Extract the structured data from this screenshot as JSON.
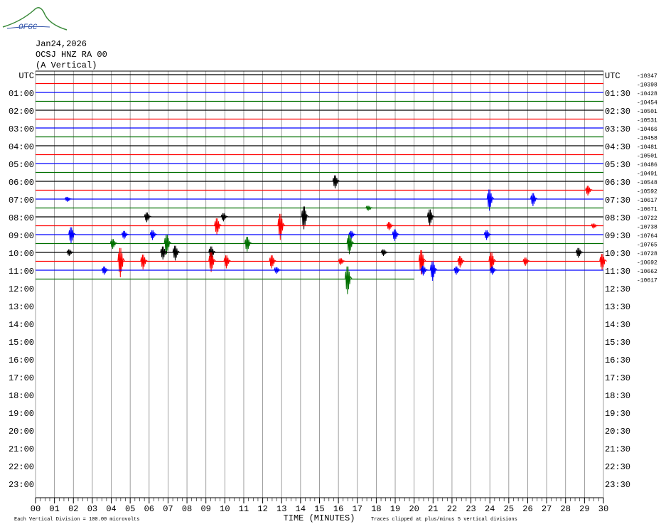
{
  "chart_data": {
    "type": "helicorder",
    "logo": "OFGC",
    "title": "Jan24,2026",
    "station": "OCSJ HNZ RA 00",
    "component": "(A Vertical)",
    "xlabel": "TIME (MINUTES)",
    "scale_note": "Each Vertical Division =  100.00 microvolts",
    "clip_note": "Traces clipped at plus/minus 5 vertical divisions",
    "left_labels": [
      "UTC",
      "01:00",
      "02:00",
      "03:00",
      "04:00",
      "05:00",
      "06:00",
      "07:00",
      "08:00",
      "09:00",
      "10:00",
      "11:00",
      "12:00",
      "13:00",
      "14:00",
      "15:00",
      "16:00",
      "17:00",
      "18:00",
      "19:00",
      "20:00",
      "21:00",
      "22:00",
      "23:00"
    ],
    "right_labels": [
      "UTC",
      "01:30",
      "02:30",
      "03:30",
      "04:30",
      "05:30",
      "06:30",
      "07:30",
      "08:30",
      "09:30",
      "10:30",
      "11:30",
      "12:30",
      "13:30",
      "14:30",
      "15:30",
      "16:30",
      "17:30",
      "18:30",
      "19:30",
      "20:30",
      "21:30",
      "22:30",
      "23:30"
    ],
    "xlim": [
      0,
      30
    ],
    "xticks": [
      {
        "value": 0,
        "label": "00"
      },
      {
        "value": 1,
        "label": "01"
      },
      {
        "value": 2,
        "label": "02"
      },
      {
        "value": 3,
        "label": "03"
      },
      {
        "value": 4,
        "label": "04"
      },
      {
        "value": 5,
        "label": "05"
      },
      {
        "value": 6,
        "label": "06"
      },
      {
        "value": 7,
        "label": "07"
      },
      {
        "value": 8,
        "label": "08"
      },
      {
        "value": 9,
        "label": "09"
      },
      10,
      11,
      12,
      13,
      14,
      15,
      16,
      17,
      18,
      19,
      20,
      21,
      22,
      23,
      24,
      25,
      26,
      27,
      28,
      29,
      30
    ],
    "traces": [
      {
        "color": "#000000",
        "offset": -10347,
        "end": 30,
        "events": []
      },
      {
        "color": "#ff0000",
        "offset": -10398,
        "end": 30,
        "events": []
      },
      {
        "color": "#0000ff",
        "offset": -10428,
        "end": 30,
        "events": []
      },
      {
        "color": "#007000",
        "offset": -10454,
        "end": 30,
        "events": []
      },
      {
        "color": "#000000",
        "offset": -10501,
        "end": 30,
        "events": []
      },
      {
        "color": "#ff0000",
        "offset": -10531,
        "end": 30,
        "events": []
      },
      {
        "color": "#0000ff",
        "offset": -10466,
        "end": 30,
        "events": []
      },
      {
        "color": "#007000",
        "offset": -10458,
        "end": 30,
        "events": []
      },
      {
        "color": "#000000",
        "offset": -10481,
        "end": 30,
        "events": []
      },
      {
        "color": "#ff0000",
        "offset": -10501,
        "end": 30,
        "events": []
      },
      {
        "color": "#0000ff",
        "offset": -10486,
        "end": 30,
        "events": []
      },
      {
        "color": "#007000",
        "offset": -10491,
        "end": 30,
        "events": []
      },
      {
        "color": "#000000",
        "offset": -10548,
        "end": 30,
        "events": [
          [
            15.85,
            0.8
          ]
        ]
      },
      {
        "color": "#ff0000",
        "offset": -10592,
        "end": 30,
        "events": [
          [
            29.2,
            0.6
          ]
        ]
      },
      {
        "color": "#0000ff",
        "offset": -10617,
        "end": 30,
        "events": [
          [
            1.7,
            0.3
          ],
          [
            24.0,
            1.3
          ],
          [
            26.3,
            0.8
          ]
        ]
      },
      {
        "color": "#007000",
        "offset": -10671,
        "end": 30,
        "events": [
          [
            17.6,
            0.3
          ]
        ]
      },
      {
        "color": "#000000",
        "offset": -10722,
        "end": 30,
        "events": [
          [
            5.9,
            0.6
          ],
          [
            9.95,
            0.5
          ],
          [
            14.2,
            1.4
          ],
          [
            20.85,
            1.0
          ]
        ]
      },
      {
        "color": "#ff0000",
        "offset": -10738,
        "end": 30,
        "events": [
          [
            9.6,
            1.0
          ],
          [
            12.95,
            1.6
          ],
          [
            18.7,
            0.5
          ],
          [
            29.5,
            0.3
          ]
        ]
      },
      {
        "color": "#0000ff",
        "offset": -10764,
        "end": 30,
        "events": [
          [
            1.9,
            1.0
          ],
          [
            4.7,
            0.5
          ],
          [
            6.2,
            0.6
          ],
          [
            16.7,
            0.5
          ],
          [
            19.0,
            0.7
          ],
          [
            23.85,
            0.6
          ]
        ]
      },
      {
        "color": "#007000",
        "offset": -10765,
        "end": 30,
        "events": [
          [
            4.1,
            0.6
          ],
          [
            6.95,
            1.2
          ],
          [
            11.2,
            0.9
          ],
          [
            16.6,
            1.2
          ]
        ]
      },
      {
        "color": "#000000",
        "offset": -10728,
        "end": 30,
        "events": [
          [
            1.8,
            0.4
          ],
          [
            6.75,
            0.8
          ],
          [
            7.4,
            0.9
          ],
          [
            9.3,
            0.8
          ],
          [
            18.4,
            0.4
          ],
          [
            28.7,
            0.6
          ]
        ]
      },
      {
        "color": "#ff0000",
        "offset": -10692,
        "end": 30,
        "events": [
          [
            4.5,
            1.8
          ],
          [
            5.7,
            0.9
          ],
          [
            9.3,
            1.2
          ],
          [
            10.1,
            0.8
          ],
          [
            12.5,
            0.8
          ],
          [
            16.15,
            0.4
          ],
          [
            20.4,
            1.5
          ],
          [
            22.45,
            0.7
          ],
          [
            24.1,
            1.2
          ],
          [
            25.9,
            0.5
          ],
          [
            29.95,
            1.0
          ]
        ]
      },
      {
        "color": "#0000ff",
        "offset": -10662,
        "end": 30,
        "events": [
          [
            3.65,
            0.5
          ],
          [
            12.75,
            0.4
          ],
          [
            20.5,
            0.6
          ],
          [
            21.0,
            1.2
          ],
          [
            22.25,
            0.5
          ],
          [
            24.15,
            0.5
          ]
        ]
      },
      {
        "color": "#007000",
        "offset": -10617,
        "end": 20,
        "events": [
          [
            16.5,
            1.7
          ]
        ]
      }
    ]
  }
}
